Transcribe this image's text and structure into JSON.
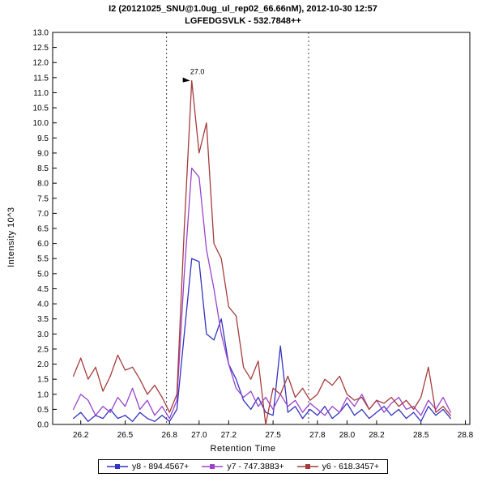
{
  "chart_data": {
    "type": "line",
    "title": "I2 (20121025_SNU@1.0ug_ul_rep02_66.66nM), 2012-10-30 12:57",
    "subtitle": "LGFEDGSVLK - 532.7848++",
    "xlabel": "Retention Time",
    "ylabel": "Intensity 10^3",
    "xlim": [
      26.01,
      28.83
    ],
    "ylim": [
      0,
      13
    ],
    "x_ticks": [
      26.2,
      26.5,
      26.8,
      27.0,
      27.2,
      27.5,
      27.8,
      28.0,
      28.2,
      28.5,
      28.8
    ],
    "y_tick_step": 0.5,
    "grid": false,
    "legend_position": "bottom",
    "integration_boundaries": [
      26.78,
      27.74
    ],
    "annotation": {
      "text": "27.0",
      "x": 26.95,
      "y": 11.4,
      "color": "#8b2020"
    },
    "x": [
      26.15,
      26.2,
      26.25,
      26.3,
      26.35,
      26.4,
      26.45,
      26.5,
      26.55,
      26.6,
      26.65,
      26.7,
      26.75,
      26.8,
      26.85,
      26.9,
      26.95,
      27.0,
      27.05,
      27.1,
      27.15,
      27.2,
      27.25,
      27.3,
      27.35,
      27.4,
      27.45,
      27.5,
      27.55,
      27.6,
      27.65,
      27.7,
      27.75,
      27.8,
      27.85,
      27.9,
      27.95,
      28.0,
      28.05,
      28.1,
      28.15,
      28.2,
      28.25,
      28.3,
      28.35,
      28.4,
      28.45,
      28.5,
      28.55,
      28.6,
      28.65,
      28.7
    ],
    "series": [
      {
        "name": "y8 - 894.4567+",
        "color": "#3333c4",
        "values": [
          0.2,
          0.4,
          0.1,
          0.3,
          0.2,
          0.5,
          0.2,
          0.3,
          0.1,
          0.4,
          0.2,
          0.1,
          0.3,
          0.1,
          0.5,
          3.0,
          5.5,
          5.4,
          3.0,
          2.8,
          3.5,
          2.0,
          1.5,
          0.8,
          0.5,
          0.9,
          0.4,
          0.3,
          2.6,
          0.4,
          0.6,
          0.2,
          0.5,
          0.3,
          0.6,
          0.2,
          0.4,
          0.7,
          0.3,
          0.5,
          0.2,
          0.4,
          0.6,
          0.3,
          0.5,
          0.2,
          0.4,
          0.1,
          0.6,
          0.3,
          0.5,
          0.2
        ]
      },
      {
        "name": "y7 - 747.3883+",
        "color": "#9944cc",
        "values": [
          0.5,
          1.0,
          0.8,
          0.3,
          0.6,
          0.4,
          0.9,
          0.6,
          1.2,
          0.5,
          0.8,
          0.3,
          0.6,
          0.2,
          0.8,
          5.0,
          8.5,
          8.2,
          5.8,
          4.5,
          3.0,
          2.0,
          1.2,
          0.9,
          1.1,
          0.6,
          0.9,
          0.5,
          1.0,
          0.6,
          0.8,
          0.4,
          0.7,
          0.5,
          0.3,
          0.6,
          0.4,
          0.9,
          0.6,
          1.0,
          0.5,
          0.8,
          0.4,
          0.7,
          0.9,
          0.5,
          0.6,
          0.3,
          0.8,
          0.5,
          0.9,
          0.4
        ]
      },
      {
        "name": "y6 - 618.3457+",
        "color": "#a63b3b",
        "values": [
          1.6,
          2.2,
          1.5,
          1.9,
          1.1,
          1.6,
          2.3,
          1.8,
          1.9,
          1.5,
          1.0,
          1.3,
          0.9,
          0.4,
          1.0,
          6.5,
          11.4,
          9.0,
          10.0,
          6.0,
          5.5,
          3.9,
          3.6,
          1.9,
          1.5,
          2.1,
          0.0,
          1.2,
          1.0,
          1.6,
          0.9,
          1.2,
          0.8,
          1.0,
          1.5,
          1.3,
          1.6,
          1.0,
          0.8,
          0.9,
          0.5,
          0.8,
          0.7,
          0.9,
          0.6,
          0.8,
          0.5,
          0.9,
          1.9,
          0.4,
          0.6,
          0.3
        ]
      }
    ]
  }
}
